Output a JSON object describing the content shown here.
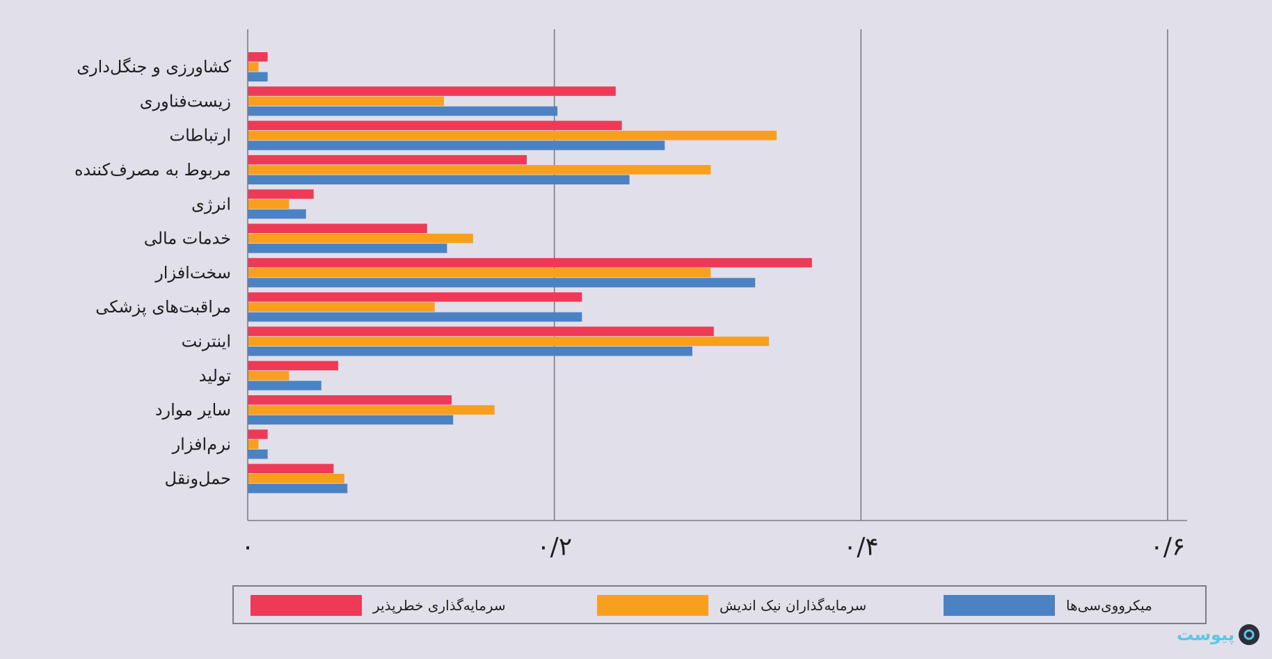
{
  "chart_data": {
    "type": "bar",
    "orientation": "horizontal",
    "categories": [
      "کشاورزی و جنگل‌داری",
      "زیست‌فناوری",
      "ارتباطات",
      "مربوط به مصرف‌کننده",
      "انرژی",
      "خدمات مالی",
      "سخت‌افزار",
      "مراقبت‌های پزشکی",
      "اینترنت",
      "تولید",
      "سایر موارد",
      "نرم‌افزار",
      "حمل‌ونقل"
    ],
    "series": [
      {
        "name": "سرمایه‌گذاری خطرپذیر",
        "color": "#ee3a57",
        "values": [
          0.013,
          0.24,
          0.244,
          0.182,
          0.043,
          0.117,
          0.368,
          0.218,
          0.304,
          0.059,
          0.133,
          0.013,
          0.056
        ]
      },
      {
        "name": "سرمایه‌گذاران نیک اندیش",
        "color": "#f8a01e",
        "values": [
          0.007,
          0.128,
          0.345,
          0.302,
          0.027,
          0.147,
          0.302,
          0.122,
          0.34,
          0.027,
          0.161,
          0.007,
          0.063
        ]
      },
      {
        "name": "میکرووی‌سی‌ها",
        "color": "#4b82c4",
        "values": [
          0.013,
          0.202,
          0.272,
          0.249,
          0.038,
          0.13,
          0.331,
          0.218,
          0.29,
          0.048,
          0.134,
          0.013,
          0.065
        ]
      }
    ],
    "xlim": [
      0,
      0.6
    ],
    "xticks": [
      0,
      0.2,
      0.4,
      0.6
    ],
    "xtick_labels": [
      "۰",
      "۰/۲",
      "۰/۴",
      "۰/۶"
    ],
    "grid": "vertical",
    "legend_position": "bottom"
  },
  "logo": {
    "text": "پیوست"
  }
}
